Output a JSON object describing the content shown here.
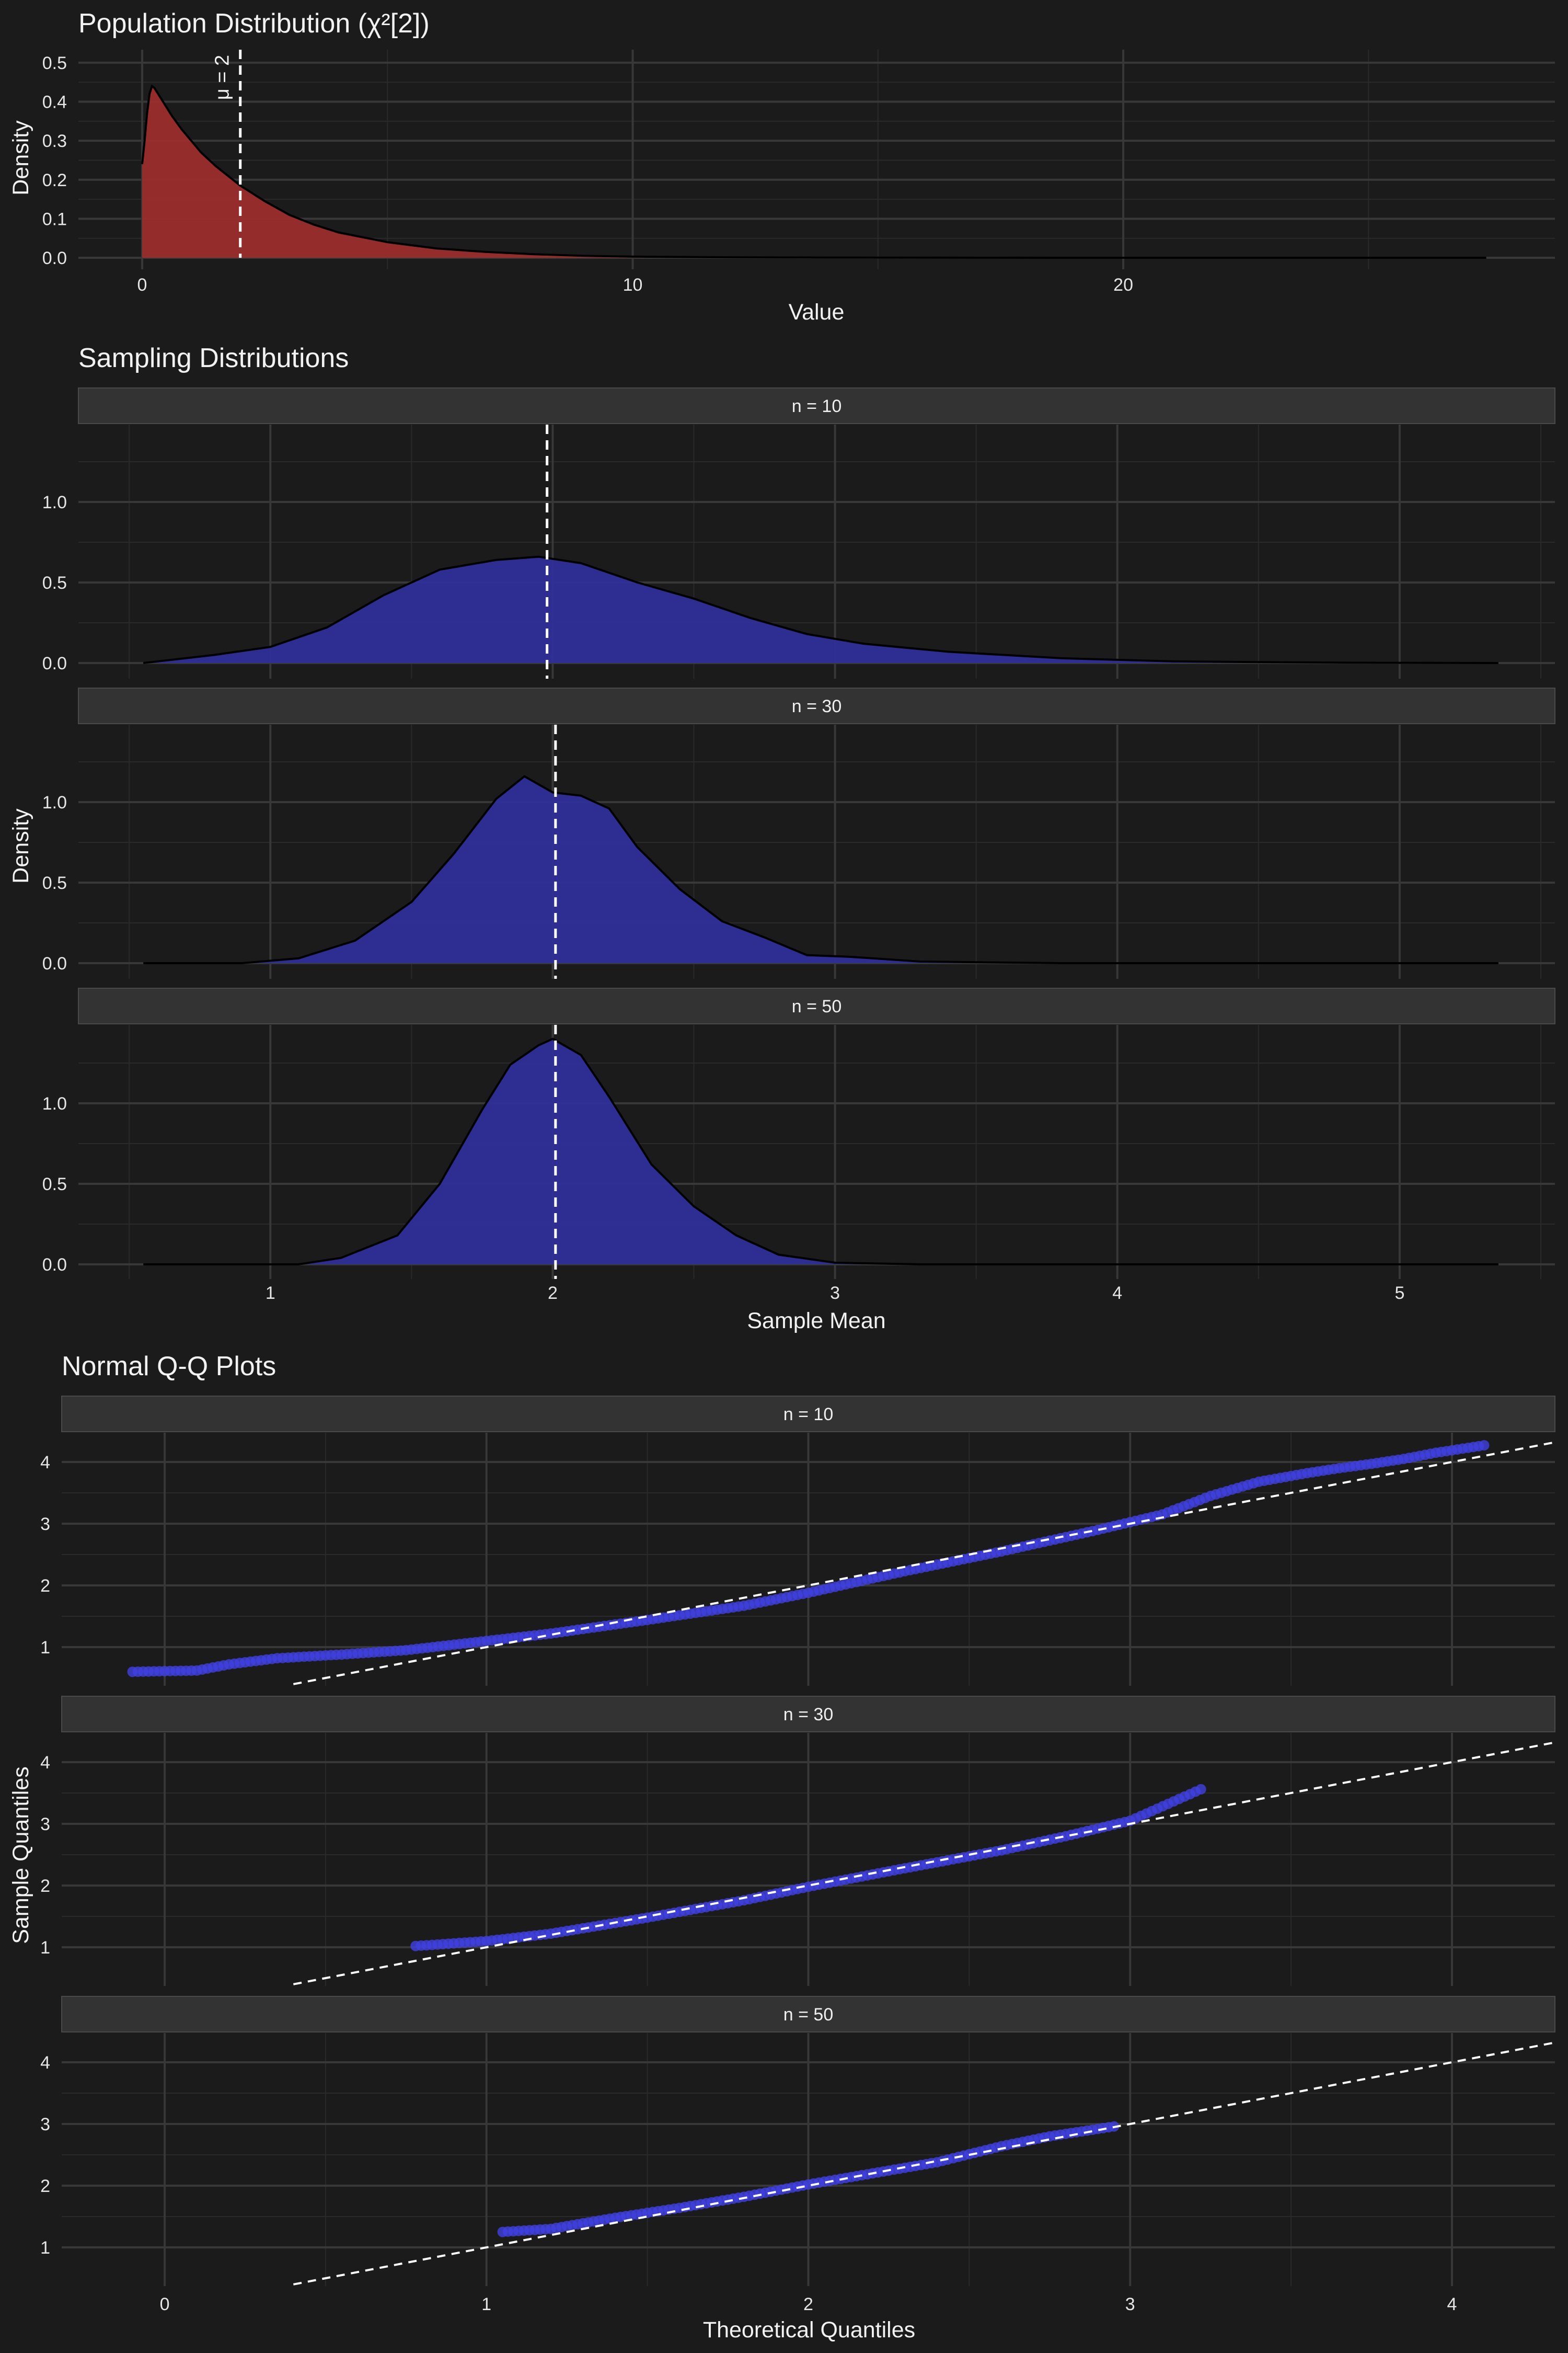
{
  "chart_data": [
    {
      "type": "area",
      "title": "Population Distribution (χ²[2])",
      "xlabel": "Value",
      "ylabel": "Density",
      "xlim": [
        -1.3,
        28.8
      ],
      "ylim": [
        0,
        0.52
      ],
      "xticks": [
        "0",
        "10",
        "20"
      ],
      "xtick_values": [
        0,
        10,
        20
      ],
      "yticks": [
        "0.0",
        "0.1",
        "0.2",
        "0.3",
        "0.4",
        "0.5"
      ],
      "ytick_values": [
        0,
        0.1,
        0.2,
        0.3,
        0.4,
        0.5
      ],
      "grid": true,
      "fill_color": "#9b2d2d",
      "mean_line": {
        "x": 2,
        "label": "μ = 2"
      },
      "x": [
        0,
        0.05,
        0.1,
        0.15,
        0.2,
        0.25,
        0.3,
        0.4,
        0.5,
        0.6,
        0.8,
        1.0,
        1.2,
        1.5,
        1.8,
        2.0,
        2.5,
        3.0,
        3.5,
        4.0,
        5.0,
        6.0,
        7.0,
        8.0,
        9.0,
        10,
        12,
        14,
        17,
        20,
        24,
        27.4
      ],
      "y": [
        0.24,
        0.3,
        0.37,
        0.42,
        0.44,
        0.435,
        0.425,
        0.405,
        0.385,
        0.365,
        0.33,
        0.3,
        0.27,
        0.235,
        0.205,
        0.185,
        0.145,
        0.11,
        0.085,
        0.065,
        0.04,
        0.024,
        0.015,
        0.009,
        0.005,
        0.003,
        0.0012,
        0.0005,
        0.0001,
        0.0,
        0.0,
        0.0
      ]
    },
    {
      "type": "area",
      "title": "Sampling Distributions",
      "xlabel": "Sample Mean",
      "ylabel": "Density",
      "xlim": [
        0.32,
        5.55
      ],
      "ylim": [
        0,
        1.5
      ],
      "xticks": [
        "1",
        "2",
        "3",
        "4",
        "5"
      ],
      "xtick_values": [
        1,
        2,
        3,
        4,
        5
      ],
      "yticks": [
        "0.0",
        "0.5",
        "1.0"
      ],
      "ytick_values": [
        0,
        0.5,
        1.0
      ],
      "grid": true,
      "fill_color": "#2e2e99",
      "panels": [
        {
          "strip": "n = 10",
          "mean_x": 1.98,
          "x": [
            0.55,
            0.8,
            1.0,
            1.2,
            1.4,
            1.6,
            1.8,
            1.95,
            2.1,
            2.3,
            2.5,
            2.7,
            2.9,
            3.1,
            3.4,
            3.8,
            4.2,
            4.8,
            5.35
          ],
          "y": [
            0.0,
            0.05,
            0.1,
            0.22,
            0.42,
            0.58,
            0.64,
            0.66,
            0.62,
            0.5,
            0.4,
            0.28,
            0.18,
            0.12,
            0.07,
            0.03,
            0.01,
            0.002,
            0.0
          ]
        },
        {
          "strip": "n = 30",
          "mean_x": 2.01,
          "x": [
            0.55,
            0.9,
            1.1,
            1.3,
            1.5,
            1.65,
            1.8,
            1.9,
            2.0,
            2.1,
            2.2,
            2.3,
            2.45,
            2.6,
            2.75,
            2.9,
            3.05,
            3.3,
            3.8,
            5.35
          ],
          "y": [
            0.0,
            0.0,
            0.03,
            0.14,
            0.38,
            0.68,
            1.02,
            1.16,
            1.06,
            1.04,
            0.96,
            0.72,
            0.46,
            0.26,
            0.16,
            0.05,
            0.04,
            0.01,
            0.0,
            0.0
          ]
        },
        {
          "strip": "n = 50",
          "mean_x": 2.01,
          "x": [
            0.55,
            1.1,
            1.25,
            1.45,
            1.6,
            1.75,
            1.85,
            1.95,
            2.0,
            2.1,
            2.2,
            2.35,
            2.5,
            2.65,
            2.8,
            3.0,
            3.3,
            5.35
          ],
          "y": [
            0.0,
            0.0,
            0.04,
            0.18,
            0.5,
            0.96,
            1.24,
            1.36,
            1.4,
            1.3,
            1.04,
            0.62,
            0.36,
            0.18,
            0.06,
            0.01,
            0.0,
            0.0
          ]
        }
      ]
    },
    {
      "type": "scatter",
      "title": "Normal Q-Q Plots",
      "xlabel": "Theoretical Quantiles",
      "ylabel": "Sample Quantiles",
      "xlim": [
        -0.32,
        4.32
      ],
      "ylim": [
        0.45,
        4.4
      ],
      "xticks": [
        "0",
        "1",
        "2",
        "3",
        "4"
      ],
      "xtick_values": [
        0,
        1,
        2,
        3,
        4
      ],
      "yticks": [
        "1",
        "2",
        "3",
        "4"
      ],
      "ytick_values": [
        1,
        2,
        3,
        4
      ],
      "grid": true,
      "point_color": "#4040e0",
      "reference_line": {
        "x1": 0.4,
        "y1": 0.4,
        "x2": 4.32,
        "y2": 4.32
      },
      "panels": [
        {
          "strip": "n = 10",
          "min_q": -0.1,
          "max_q": 4.1,
          "q": [
            -0.1,
            0.1,
            0.2,
            0.35,
            0.55,
            0.75,
            0.9,
            1.2,
            1.5,
            1.8,
            2.0,
            2.3,
            2.6,
            2.9,
            3.1,
            3.25,
            3.4,
            3.55,
            3.65,
            3.75,
            3.85,
            3.95,
            4.1
          ],
          "s": [
            0.6,
            0.62,
            0.72,
            0.82,
            0.88,
            0.95,
            1.04,
            1.22,
            1.44,
            1.67,
            1.88,
            2.23,
            2.55,
            2.9,
            3.15,
            3.45,
            3.68,
            3.82,
            3.9,
            3.97,
            4.05,
            4.15,
            4.27
          ]
        },
        {
          "strip": "n = 30",
          "min_q": 0.78,
          "max_q": 3.22,
          "q": [
            0.78,
            1.0,
            1.2,
            1.5,
            1.8,
            2.0,
            2.3,
            2.6,
            2.8,
            3.0,
            3.22
          ],
          "s": [
            1.02,
            1.1,
            1.22,
            1.48,
            1.76,
            1.98,
            2.28,
            2.57,
            2.8,
            3.05,
            3.56
          ]
        },
        {
          "strip": "n = 50",
          "min_q": 1.05,
          "max_q": 2.95,
          "q": [
            1.05,
            1.2,
            1.4,
            1.6,
            1.8,
            2.0,
            2.2,
            2.4,
            2.6,
            2.75,
            2.95
          ],
          "s": [
            1.25,
            1.3,
            1.48,
            1.64,
            1.82,
            2.02,
            2.2,
            2.38,
            2.64,
            2.8,
            2.96
          ]
        }
      ]
    }
  ]
}
